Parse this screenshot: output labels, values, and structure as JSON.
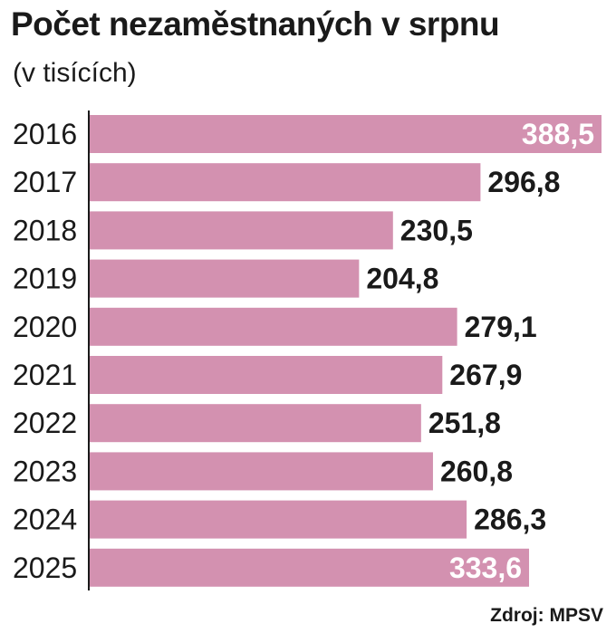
{
  "chart_data": {
    "type": "bar",
    "orientation": "horizontal",
    "title": "Počet nezaměstnaných v srpnu",
    "subtitle": "(v tisících)",
    "categories": [
      "2016",
      "2017",
      "2018",
      "2019",
      "2020",
      "2021",
      "2022",
      "2023",
      "2024",
      "2025"
    ],
    "values": [
      388.5,
      296.8,
      230.5,
      204.8,
      279.1,
      267.9,
      251.8,
      260.8,
      286.3,
      333.6
    ],
    "value_labels": [
      "388,5",
      "296,8",
      "230,5",
      "204,8",
      "279,1",
      "267,9",
      "251,8",
      "260,8",
      "286,3",
      "333,6"
    ],
    "labels_inside": [
      true,
      false,
      false,
      false,
      false,
      false,
      false,
      false,
      false,
      true
    ],
    "xlabel": "",
    "ylabel": "",
    "grid": false,
    "bar_color": "#d391b0",
    "text_color": "#1a1a1a",
    "inside_label_color": "#ffffff"
  },
  "source": "Zdroj: MPSV"
}
